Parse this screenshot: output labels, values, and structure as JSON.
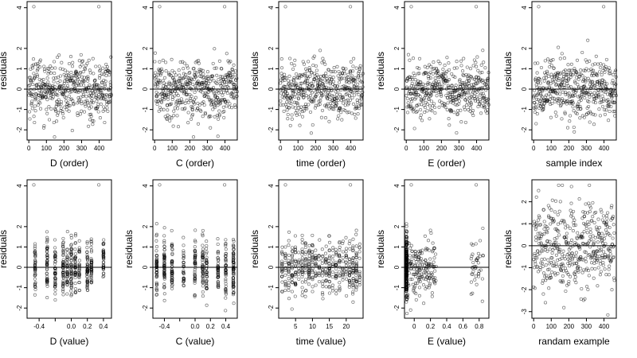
{
  "figure": {
    "rows": 2,
    "cols": 5
  },
  "chart_data": [
    {
      "type": "scatter",
      "xlabel": "D (order)",
      "ylabel": "residuals",
      "xlim": [
        -10,
        470
      ],
      "ylim": [
        -2.5,
        4.3
      ],
      "xticks": [
        0,
        100,
        200,
        300,
        400
      ],
      "yticks": [
        -2,
        -1,
        0,
        1,
        2,
        4
      ],
      "refline_y": 0,
      "pattern": "order",
      "points": []
    },
    {
      "type": "scatter",
      "xlabel": "C (order)",
      "ylabel": "residuals",
      "xlim": [
        -10,
        470
      ],
      "ylim": [
        -2.5,
        4.3
      ],
      "xticks": [
        0,
        100,
        200,
        300,
        400
      ],
      "yticks": [
        -2,
        -1,
        0,
        1,
        2,
        4
      ],
      "refline_y": 0,
      "pattern": "order",
      "points": []
    },
    {
      "type": "scatter",
      "xlabel": "time (order)",
      "ylabel": "residuals",
      "xlim": [
        -10,
        470
      ],
      "ylim": [
        -2.5,
        4.3
      ],
      "xticks": [
        0,
        100,
        200,
        300,
        400
      ],
      "yticks": [
        -2,
        -1,
        0,
        1,
        2,
        4
      ],
      "refline_y": 0,
      "pattern": "order",
      "points": []
    },
    {
      "type": "scatter",
      "xlabel": "E (order)",
      "ylabel": "residuals",
      "xlim": [
        -10,
        470
      ],
      "ylim": [
        -2.5,
        4.3
      ],
      "xticks": [
        0,
        100,
        200,
        300,
        400
      ],
      "yticks": [
        -2,
        -1,
        0,
        1,
        2,
        4
      ],
      "refline_y": 0,
      "pattern": "order",
      "points": []
    },
    {
      "type": "scatter",
      "xlabel": "sample index",
      "ylabel": "residuals",
      "xlim": [
        -10,
        470
      ],
      "ylim": [
        -2.5,
        4.3
      ],
      "xticks": [
        0,
        100,
        200,
        300,
        400
      ],
      "yticks": [
        -2,
        -1,
        0,
        1,
        2,
        4
      ],
      "refline_y": 0,
      "pattern": "order",
      "points": []
    },
    {
      "type": "scatter",
      "xlabel": "D (value)",
      "ylabel": "residuals",
      "xlim": [
        -0.55,
        0.5
      ],
      "ylim": [
        -2.5,
        4.3
      ],
      "xticks": [
        -0.4,
        -0.2,
        0.0,
        0.2,
        0.4
      ],
      "xtick_labels": [
        "-0.4",
        "",
        "0.0",
        "0.2",
        "0.4"
      ],
      "yticks": [
        -2,
        -1,
        0,
        1,
        2,
        4
      ],
      "refline_y": 0,
      "pattern": "discrete",
      "xlevels": [
        -0.45,
        -0.3,
        -0.2,
        -0.1,
        -0.05,
        0.0,
        0.05,
        0.1,
        0.2,
        0.25,
        0.4
      ],
      "points": []
    },
    {
      "type": "scatter",
      "xlabel": "C (value)",
      "ylabel": "residuals",
      "xlim": [
        -0.55,
        0.55
      ],
      "ylim": [
        -2.5,
        4.3
      ],
      "xticks": [
        -0.4,
        -0.2,
        0.0,
        0.2,
        0.4
      ],
      "xtick_labels": [
        "-0.4",
        "",
        "0.0",
        "0.2",
        "0.4"
      ],
      "yticks": [
        -2,
        -1,
        0,
        1,
        2,
        4
      ],
      "refline_y": 0,
      "pattern": "discrete",
      "xlevels": [
        -0.5,
        -0.4,
        -0.3,
        -0.15,
        0.0,
        0.1,
        0.15,
        0.3,
        0.4,
        0.5
      ],
      "points": []
    },
    {
      "type": "scatter",
      "xlabel": "time (value)",
      "ylabel": "residuals",
      "xlim": [
        0,
        25
      ],
      "ylim": [
        -2.5,
        4.3
      ],
      "xticks": [
        5,
        10,
        15,
        20
      ],
      "yticks": [
        -2,
        -1,
        0,
        1,
        2,
        4
      ],
      "refline_y": 0,
      "pattern": "discrete",
      "xlevels": [
        1,
        2,
        3,
        4,
        5,
        6,
        7,
        8,
        9,
        10,
        11,
        12,
        13,
        14,
        15,
        16,
        17,
        18,
        19,
        20,
        21,
        22,
        23,
        24
      ],
      "points": []
    },
    {
      "type": "scatter",
      "xlabel": "E (value)",
      "ylabel": "residuals",
      "xlim": [
        -0.12,
        0.92
      ],
      "ylim": [
        -2.5,
        4.3
      ],
      "xticks": [
        0.0,
        0.2,
        0.4,
        0.6,
        0.8
      ],
      "yticks": [
        -2,
        -1,
        0,
        1,
        2,
        4
      ],
      "refline_y": 0,
      "pattern": "skewed",
      "points": []
    },
    {
      "type": "scatter",
      "xlabel": "randam example",
      "ylabel": "residuals",
      "xlim": [
        -10,
        470
      ],
      "ylim": [
        -3.3,
        3.0
      ],
      "xticks": [
        0,
        100,
        200,
        300,
        400
      ],
      "yticks": [
        -3,
        -2,
        -1,
        0,
        1,
        2
      ],
      "refline_y": 0,
      "pattern": "random",
      "points": []
    }
  ]
}
